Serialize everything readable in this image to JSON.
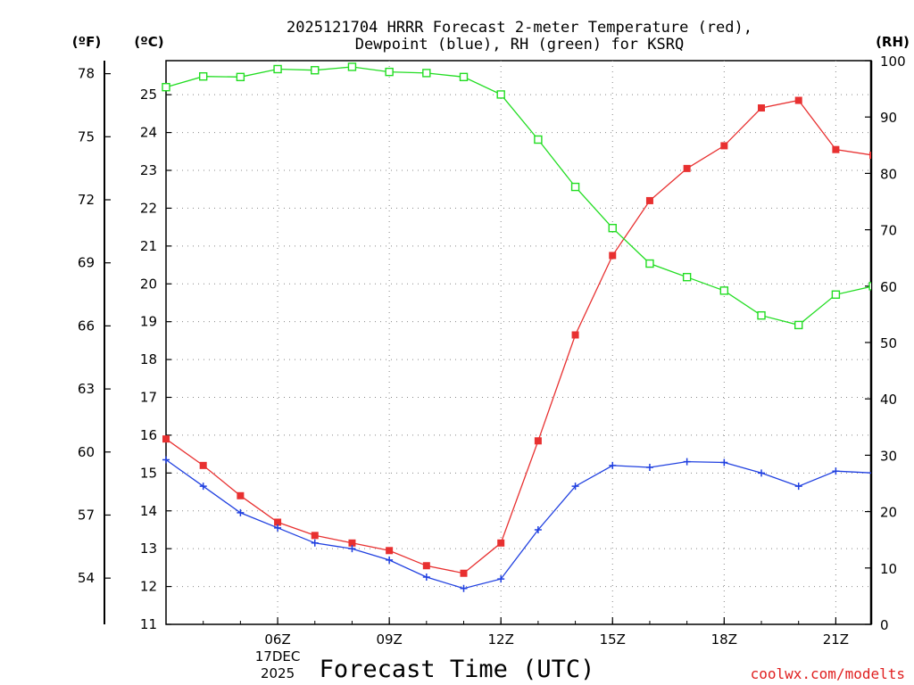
{
  "chart_data": {
    "type": "line",
    "title_line1": "2025121704 HRRR Forecast 2-meter Temperature (red),",
    "title_line2": "Dewpoint (blue), RH (green) for KSRQ",
    "xlabel": "Forecast Time (UTC)",
    "credit": "coolwx.com/modelts",
    "unit_f": "(ºF)",
    "unit_c": "(ºC)",
    "unit_rh": "(RH)",
    "x_hours": [
      3,
      4,
      5,
      6,
      7,
      8,
      9,
      10,
      11,
      12,
      13,
      14,
      15,
      16,
      17,
      18,
      19,
      20,
      21,
      22
    ],
    "x_ticks": [
      {
        "hour": 6,
        "label": "06Z",
        "sub1": "17DEC",
        "sub2": "2025"
      },
      {
        "hour": 9,
        "label": "09Z"
      },
      {
        "hour": 12,
        "label": "12Z"
      },
      {
        "hour": 15,
        "label": "15Z"
      },
      {
        "hour": 18,
        "label": "18Z"
      },
      {
        "hour": 21,
        "label": "21Z"
      }
    ],
    "xlim": [
      3,
      21.95
    ],
    "ylim_c": [
      11,
      25.9
    ],
    "ylim_rh": [
      0,
      100
    ],
    "c_ticks": [
      "11",
      "12",
      "13",
      "14",
      "15",
      "16",
      "17",
      "18",
      "19",
      "20",
      "21",
      "22",
      "23",
      "24",
      "25"
    ],
    "f_ticks": [
      "54",
      "57",
      "60",
      "63",
      "66",
      "69",
      "72",
      "75",
      "78"
    ],
    "rh_ticks": [
      "0",
      "10",
      "20",
      "30",
      "40",
      "50",
      "60",
      "70",
      "80",
      "90",
      "100"
    ],
    "grid": true,
    "series": [
      {
        "name": "Temperature",
        "unit": "C",
        "color": "#e83030",
        "marker": "filled-square",
        "values": [
          15.9,
          15.2,
          14.4,
          13.7,
          13.35,
          13.15,
          12.95,
          12.55,
          12.35,
          13.15,
          15.85,
          18.65,
          20.75,
          22.2,
          23.05,
          23.65,
          24.65,
          24.85,
          23.55,
          23.4
        ]
      },
      {
        "name": "Dewpoint",
        "unit": "C",
        "color": "#2040e0",
        "marker": "plus",
        "values": [
          15.35,
          14.65,
          13.95,
          13.55,
          13.15,
          13.0,
          12.7,
          12.25,
          11.95,
          12.2,
          13.5,
          14.65,
          15.2,
          15.15,
          15.3,
          15.28,
          15.0,
          14.65,
          15.05,
          15.0
        ]
      },
      {
        "name": "RH",
        "unit": "%",
        "color": "#22dd22",
        "marker": "open-square",
        "values": [
          95.3,
          97.2,
          97.1,
          98.5,
          98.3,
          98.9,
          98.0,
          97.8,
          97.1,
          94.0,
          86.0,
          77.6,
          70.3,
          64.0,
          61.6,
          59.2,
          54.8,
          53.1,
          58.5,
          60.0
        ]
      }
    ]
  }
}
